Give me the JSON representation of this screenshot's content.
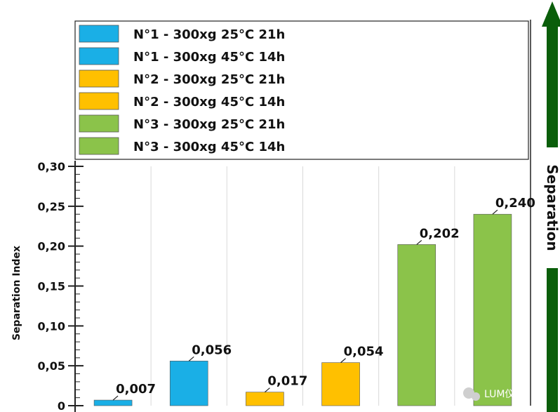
{
  "chart_data": {
    "type": "bar",
    "ylabel": "Separation Index",
    "ylim": [
      0,
      0.3
    ],
    "yticks": [
      "0",
      "0,05",
      "0,10",
      "0,15",
      "0,20",
      "0,25",
      "0,30"
    ],
    "ytick_values": [
      0,
      0.05,
      0.1,
      0.15,
      0.2,
      0.25,
      0.3
    ],
    "grid": "vertical",
    "legend_position": "top",
    "series": [
      {
        "name": "N°1 - 300xg 25°C 21h",
        "value": 0.007,
        "label": "0,007",
        "color": "#1AAFE6"
      },
      {
        "name": "N°1 - 300xg 45°C 14h",
        "value": 0.056,
        "label": "0,056",
        "color": "#1AAFE6"
      },
      {
        "name": "N°2 - 300xg 25°C 21h",
        "value": 0.017,
        "label": "0,017",
        "color": "#FFC000"
      },
      {
        "name": "N°2 - 300xg 45°C 14h",
        "value": 0.054,
        "label": "0,054",
        "color": "#FFC000"
      },
      {
        "name": "N°3 - 300xg 25°C 21h",
        "value": 0.202,
        "label": "0,202",
        "color": "#8BC34A"
      },
      {
        "name": "N°3 - 300xg 45°C 14h",
        "value": 0.24,
        "label": "0,240",
        "color": "#8BC34A"
      }
    ]
  },
  "side_arrow": {
    "label": "Separation",
    "color": "#0A5E0A"
  },
  "watermark": {
    "text": "LUM仪器"
  }
}
